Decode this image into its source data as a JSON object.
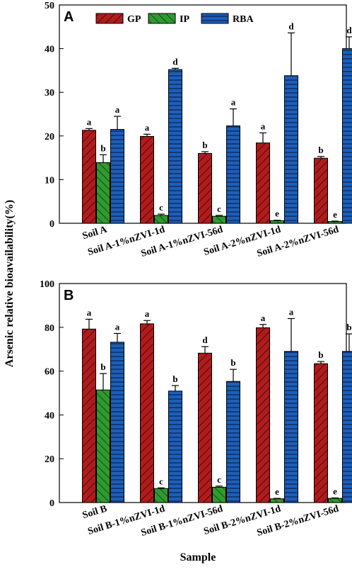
{
  "chart_data": {
    "type": "bar",
    "ylabel": "Arsenic relative bioavailability(%)",
    "xlabel": "Sample",
    "colors": {
      "GP": "#b01c1c",
      "IP": "#2f9a2f",
      "RBA": "#1d5fb8"
    },
    "legend": [
      "GP",
      "IP",
      "RBA"
    ],
    "panels": [
      {
        "letter": "A",
        "ylim": [
          0,
          50
        ],
        "yticks": [
          0,
          10,
          20,
          30,
          40,
          50
        ],
        "categories": [
          "Soil A",
          "Soil A-1%nZVI-1d",
          "Soil A-1%nZVI-56d",
          "Soil A-2%nZVI-1d",
          "Soil A-2%nZVI-56d"
        ],
        "series": [
          {
            "name": "GP",
            "values": [
              21.3,
              19.9,
              16.0,
              18.4,
              14.9
            ],
            "errors": [
              0.4,
              0.5,
              0.4,
              2.3,
              0.4
            ],
            "sig": [
              "a",
              "a",
              "b",
              "a",
              "b"
            ]
          },
          {
            "name": "IP",
            "values": [
              13.9,
              1.8,
              1.6,
              0.6,
              0.4
            ],
            "errors": [
              1.8,
              0.3,
              0.2,
              0.1,
              0.1
            ],
            "sig": [
              "b",
              "c",
              "c",
              "e",
              "e"
            ]
          },
          {
            "name": "RBA",
            "values": [
              21.5,
              35.2,
              22.3,
              33.8,
              40.0
            ],
            "errors": [
              3.0,
              0.3,
              3.9,
              9.8,
              2.7
            ],
            "sig": [
              "a",
              "d",
              "a",
              "d",
              "d"
            ]
          }
        ]
      },
      {
        "letter": "B",
        "ylim": [
          0,
          100
        ],
        "yticks": [
          0,
          20,
          40,
          60,
          80,
          100
        ],
        "categories": [
          "Soil B",
          "Soil B-1%nZVI-1d",
          "Soil B-1%nZVI-56d",
          "Soil B-2%nZVI-1d",
          "Soil B-2%nZVI-56d"
        ],
        "series": [
          {
            "name": "GP",
            "values": [
              79.2,
              81.6,
              68.2,
              79.8,
              63.4
            ],
            "errors": [
              4.5,
              1.5,
              3.0,
              1.5,
              1.0
            ],
            "sig": [
              "a",
              "a",
              "d",
              "a",
              "b"
            ]
          },
          {
            "name": "IP",
            "values": [
              51.4,
              6.4,
              7.0,
              1.7,
              1.9
            ],
            "errors": [
              7.5,
              0.3,
              0.5,
              0.2,
              0.2
            ],
            "sig": [
              "b",
              "c",
              "c",
              "e",
              "e"
            ]
          },
          {
            "name": "RBA",
            "values": [
              73.2,
              50.9,
              55.3,
              69.0,
              69.0
            ],
            "errors": [
              4.0,
              2.5,
              5.5,
              15.0,
              8.0
            ],
            "sig": [
              "a",
              "b",
              "b",
              "a",
              "b"
            ]
          }
        ]
      }
    ]
  }
}
